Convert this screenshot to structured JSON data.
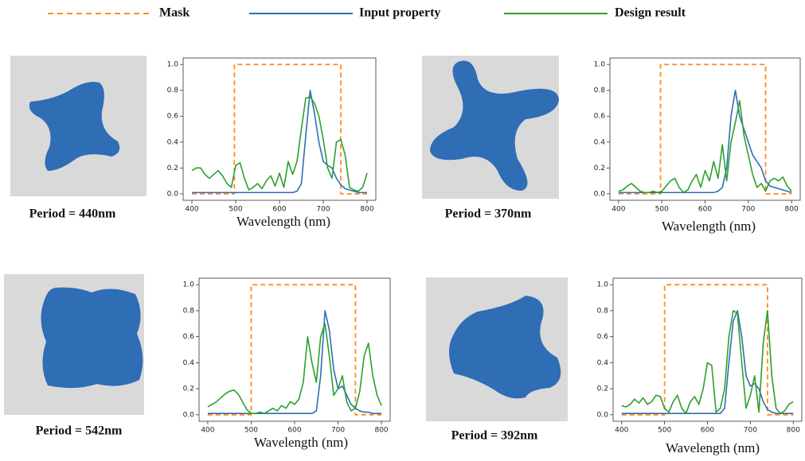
{
  "chart_data": [
    {
      "type": "line",
      "caption": "Period = 440nm",
      "x_label": "Wavelength (nm)",
      "x": [
        400,
        410,
        420,
        430,
        440,
        450,
        460,
        470,
        480,
        490,
        500,
        510,
        520,
        530,
        540,
        550,
        560,
        570,
        580,
        590,
        600,
        610,
        620,
        630,
        640,
        650,
        660,
        670,
        680,
        690,
        700,
        710,
        720,
        730,
        740,
        750,
        760,
        770,
        780,
        790,
        800
      ],
      "xlim": [
        380,
        820
      ],
      "xticks": [
        400,
        500,
        600,
        700,
        800
      ],
      "ylim": [
        -0.05,
        1.05
      ],
      "yticks": [
        {
          "value": 0,
          "label": "0.0"
        },
        {
          "value": 0.2,
          "label": "0.2"
        },
        {
          "value": 0.4,
          "label": "0.4"
        },
        {
          "value": 0.6,
          "label": "0.6"
        },
        {
          "value": 0.8,
          "label": "0.8"
        },
        {
          "value": 1,
          "label": "1.0"
        }
      ],
      "series": [
        {
          "name": "Mask",
          "color": "#ff8c1a",
          "style": "dashed",
          "x": [
            400,
            497,
            497,
            740,
            740,
            800
          ],
          "values": [
            0,
            0,
            1,
            1,
            0,
            0
          ]
        },
        {
          "name": "Input property",
          "color": "#2f6db5",
          "style": "solid",
          "values": [
            0.01,
            0.01,
            0.01,
            0.01,
            0.01,
            0.01,
            0.01,
            0.01,
            0.01,
            0.01,
            0.01,
            0.01,
            0.01,
            0.01,
            0.01,
            0.01,
            0.01,
            0.01,
            0.01,
            0.01,
            0.01,
            0.01,
            0.01,
            0.01,
            0.02,
            0.08,
            0.45,
            0.8,
            0.62,
            0.4,
            0.25,
            0.22,
            0.2,
            0.12,
            0.07,
            0.04,
            0.03,
            0.02,
            0.01,
            0.01,
            0.01
          ]
        },
        {
          "name": "Design result",
          "color": "#2ca02c",
          "style": "solid",
          "values": [
            0.18,
            0.2,
            0.2,
            0.15,
            0.12,
            0.15,
            0.18,
            0.14,
            0.08,
            0.05,
            0.22,
            0.24,
            0.12,
            0.03,
            0.05,
            0.08,
            0.04,
            0.1,
            0.14,
            0.06,
            0.16,
            0.05,
            0.25,
            0.15,
            0.25,
            0.5,
            0.74,
            0.75,
            0.7,
            0.6,
            0.42,
            0.2,
            0.12,
            0.4,
            0.42,
            0.3,
            0.05,
            0.03,
            0.02,
            0.05,
            0.16
          ]
        }
      ]
    },
    {
      "type": "line",
      "caption": "Period = 370nm",
      "x_label": "Wavelength (nm)",
      "x": [
        400,
        410,
        420,
        430,
        440,
        450,
        460,
        470,
        480,
        490,
        500,
        510,
        520,
        530,
        540,
        550,
        560,
        570,
        580,
        590,
        600,
        610,
        620,
        630,
        640,
        650,
        660,
        670,
        680,
        690,
        700,
        710,
        720,
        730,
        740,
        750,
        760,
        770,
        780,
        790,
        800
      ],
      "xlim": [
        380,
        820
      ],
      "xticks": [
        400,
        500,
        600,
        700,
        800
      ],
      "ylim": [
        -0.05,
        1.05
      ],
      "yticks": [
        {
          "value": 0,
          "label": "0.0"
        },
        {
          "value": 0.2,
          "label": "0.2"
        },
        {
          "value": 0.4,
          "label": "0.4"
        },
        {
          "value": 0.6,
          "label": "0.6"
        },
        {
          "value": 0.8,
          "label": "0.8"
        },
        {
          "value": 1,
          "label": "1.0"
        }
      ],
      "series": [
        {
          "color": "#ff8c1a",
          "style": "dashed",
          "x": [
            400,
            497,
            497,
            740,
            740,
            800
          ],
          "values": [
            0,
            0,
            1,
            1,
            0,
            0
          ]
        },
        {
          "color": "#2f6db5",
          "style": "solid",
          "values": [
            0.01,
            0.01,
            0.01,
            0.01,
            0.01,
            0.01,
            0.01,
            0.01,
            0.01,
            0.01,
            0.01,
            0.01,
            0.01,
            0.01,
            0.01,
            0.01,
            0.01,
            0.01,
            0.01,
            0.01,
            0.01,
            0.01,
            0.01,
            0.02,
            0.05,
            0.2,
            0.6,
            0.8,
            0.6,
            0.5,
            0.4,
            0.3,
            0.25,
            0.2,
            0.1,
            0.06,
            0.05,
            0.04,
            0.03,
            0.02,
            0.01
          ]
        },
        {
          "color": "#2ca02c",
          "style": "solid",
          "values": [
            0.02,
            0.03,
            0.06,
            0.08,
            0.05,
            0.02,
            0.01,
            0.01,
            0.02,
            0.01,
            0.02,
            0.06,
            0.1,
            0.12,
            0.05,
            0.01,
            0.03,
            0.1,
            0.15,
            0.05,
            0.18,
            0.1,
            0.25,
            0.12,
            0.38,
            0.1,
            0.4,
            0.55,
            0.72,
            0.45,
            0.3,
            0.15,
            0.05,
            0.08,
            0.02,
            0.1,
            0.12,
            0.1,
            0.13,
            0.06,
            0.02
          ]
        }
      ]
    },
    {
      "type": "line",
      "caption": "Period = 542nm",
      "x_label": "Wavelength (nm)",
      "x": [
        400,
        410,
        420,
        430,
        440,
        450,
        460,
        470,
        480,
        490,
        500,
        510,
        520,
        530,
        540,
        550,
        560,
        570,
        580,
        590,
        600,
        610,
        620,
        630,
        640,
        650,
        660,
        670,
        680,
        690,
        700,
        710,
        720,
        730,
        740,
        750,
        760,
        770,
        780,
        790,
        800
      ],
      "xlim": [
        380,
        820
      ],
      "xticks": [
        400,
        500,
        600,
        700,
        800
      ],
      "ylim": [
        -0.05,
        1.05
      ],
      "yticks": [
        {
          "value": 0,
          "label": "0.0"
        },
        {
          "value": 0.2,
          "label": "0.2"
        },
        {
          "value": 0.4,
          "label": "0.4"
        },
        {
          "value": 0.6,
          "label": "0.6"
        },
        {
          "value": 0.8,
          "label": "0.8"
        },
        {
          "value": 1,
          "label": "1.0"
        }
      ],
      "series": [
        {
          "color": "#ff8c1a",
          "style": "dashed",
          "x": [
            400,
            500,
            500,
            740,
            740,
            800
          ],
          "values": [
            0,
            0,
            1,
            1,
            0,
            0
          ]
        },
        {
          "color": "#2f6db5",
          "style": "solid",
          "values": [
            0.01,
            0.01,
            0.01,
            0.01,
            0.01,
            0.01,
            0.01,
            0.01,
            0.01,
            0.01,
            0.01,
            0.01,
            0.01,
            0.01,
            0.01,
            0.01,
            0.01,
            0.01,
            0.01,
            0.01,
            0.01,
            0.01,
            0.01,
            0.01,
            0.01,
            0.03,
            0.3,
            0.8,
            0.65,
            0.35,
            0.2,
            0.22,
            0.15,
            0.08,
            0.05,
            0.03,
            0.02,
            0.02,
            0.01,
            0.01,
            0.01
          ]
        },
        {
          "color": "#2ca02c",
          "style": "solid",
          "values": [
            0.06,
            0.08,
            0.1,
            0.13,
            0.16,
            0.18,
            0.19,
            0.16,
            0.1,
            0.04,
            0.01,
            0.01,
            0.02,
            0.01,
            0.03,
            0.05,
            0.03,
            0.07,
            0.05,
            0.1,
            0.08,
            0.12,
            0.25,
            0.6,
            0.4,
            0.25,
            0.6,
            0.7,
            0.45,
            0.15,
            0.2,
            0.3,
            0.1,
            0.03,
            0.05,
            0.18,
            0.45,
            0.55,
            0.3,
            0.15,
            0.07
          ]
        }
      ]
    },
    {
      "type": "line",
      "caption": "Period = 392nm",
      "x_label": "Wavelength (nm)",
      "x": [
        400,
        410,
        420,
        430,
        440,
        450,
        460,
        470,
        480,
        490,
        500,
        510,
        520,
        530,
        540,
        550,
        560,
        570,
        580,
        590,
        600,
        610,
        620,
        630,
        640,
        650,
        660,
        670,
        680,
        690,
        700,
        710,
        720,
        730,
        740,
        750,
        760,
        770,
        780,
        790,
        800
      ],
      "xlim": [
        380,
        820
      ],
      "xticks": [
        400,
        500,
        600,
        700,
        800
      ],
      "ylim": [
        -0.05,
        1.05
      ],
      "yticks": [
        {
          "value": 0,
          "label": "0.0"
        },
        {
          "value": 0.2,
          "label": "0.2"
        },
        {
          "value": 0.4,
          "label": "0.4"
        },
        {
          "value": 0.6,
          "label": "0.6"
        },
        {
          "value": 0.8,
          "label": "0.8"
        },
        {
          "value": 1,
          "label": "1.0"
        }
      ],
      "series": [
        {
          "color": "#ff8c1a",
          "style": "dashed",
          "x": [
            400,
            500,
            500,
            740,
            740,
            800
          ],
          "values": [
            0,
            0,
            1,
            1,
            0,
            0
          ]
        },
        {
          "color": "#2f6db5",
          "style": "solid",
          "values": [
            0.01,
            0.01,
            0.01,
            0.01,
            0.01,
            0.01,
            0.01,
            0.01,
            0.01,
            0.01,
            0.01,
            0.01,
            0.01,
            0.01,
            0.01,
            0.01,
            0.01,
            0.01,
            0.01,
            0.01,
            0.01,
            0.01,
            0.01,
            0.01,
            0.05,
            0.4,
            0.72,
            0.8,
            0.6,
            0.3,
            0.22,
            0.24,
            0.2,
            0.1,
            0.04,
            0.02,
            0.01,
            0.01,
            0.01,
            0.01,
            0.01
          ]
        },
        {
          "color": "#2ca02c",
          "style": "solid",
          "values": [
            0.07,
            0.06,
            0.08,
            0.12,
            0.09,
            0.13,
            0.08,
            0.1,
            0.15,
            0.14,
            0.05,
            0.02,
            0.1,
            0.15,
            0.05,
            0.01,
            0.1,
            0.14,
            0.08,
            0.2,
            0.4,
            0.38,
            0.02,
            0.05,
            0.2,
            0.6,
            0.8,
            0.78,
            0.4,
            0.05,
            0.15,
            0.3,
            0.02,
            0.55,
            0.8,
            0.3,
            0.05,
            0.01,
            0.03,
            0.08,
            0.1
          ]
        }
      ]
    }
  ]
}
